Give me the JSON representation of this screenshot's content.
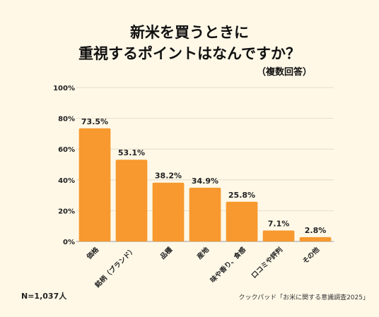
{
  "chart_data": {
    "type": "bar",
    "title": [
      "新米を買うときに",
      "重視するポイントはなんですか？"
    ],
    "subtitle": "（複数回答）",
    "categories": [
      "価格",
      "銘柄（ブランド）",
      "品種",
      "産地",
      "味や香り、食感",
      "口コミや評判",
      "その他"
    ],
    "values": [
      73.5,
      53.1,
      38.2,
      34.9,
      25.8,
      7.1,
      2.8
    ],
    "value_labels": [
      "73.5%",
      "53.1%",
      "38.2%",
      "34.9%",
      "25.8%",
      "7.1%",
      "2.8%"
    ],
    "yticks": [
      "0%",
      "20%",
      "40%",
      "60%",
      "80%",
      "100%"
    ],
    "ylim": [
      0,
      100
    ],
    "grid": true,
    "bar_color": "#F7992E"
  },
  "footer": {
    "sample": "N=1,037人",
    "source": "クックパッド「お米に関する意識調査2025」"
  }
}
